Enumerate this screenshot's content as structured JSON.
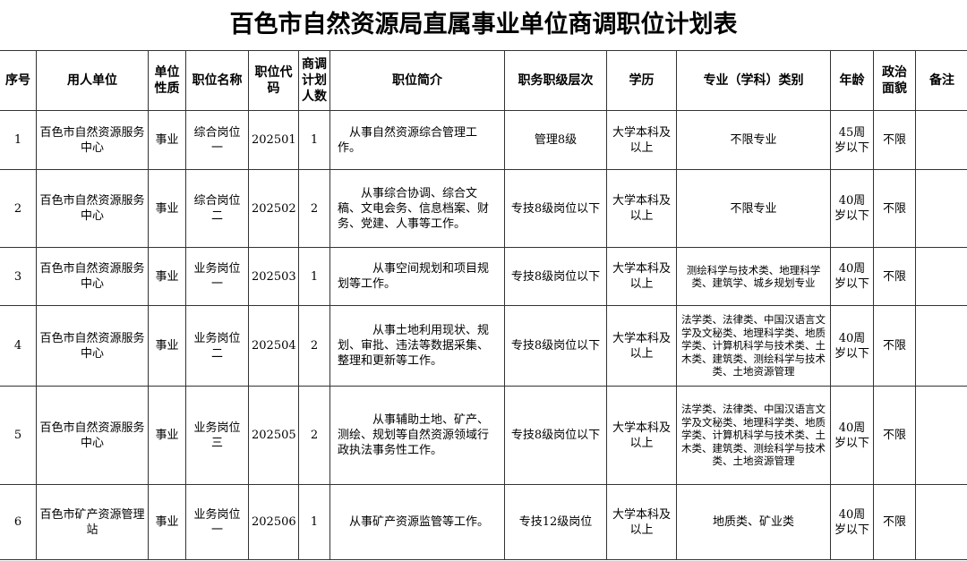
{
  "title": "百色市自然资源局直属事业单位商调职位计划表",
  "headers": [
    "序号",
    "用人单位",
    "单位性质",
    "职位名称",
    "职位代码",
    "商调计划人数",
    "职位简介",
    "职务职级层次",
    "学历",
    "专业（学科）类别",
    "年龄",
    "政治面貌",
    "备注"
  ],
  "rows": [
    {
      "no": "1",
      "unit": "百色市自然资源服务中心",
      "nature": "事业",
      "position": "综合岗位一",
      "code": "202501",
      "count": "1",
      "desc": "　从事自然资源综合管理工作。",
      "level": "管理8级",
      "education": "大学本科及以上",
      "major": "不限专业",
      "age": "45周岁以下",
      "political": "不限",
      "note": ""
    },
    {
      "no": "2",
      "unit": "百色市自然资源服务中心",
      "nature": "事业",
      "position": "综合岗位二",
      "code": "202502",
      "count": "2",
      "desc": "　　从事综合协调、综合文稿、文电会务、信息档案、财务、党建、人事等工作。",
      "level": "专技8级岗位以下",
      "education": "大学本科及以上",
      "major": "不限专业",
      "age": "40周岁以下",
      "political": "不限",
      "note": ""
    },
    {
      "no": "3",
      "unit": "百色市自然资源服务中心",
      "nature": "事业",
      "position": "业务岗位一",
      "code": "202503",
      "count": "1",
      "desc": "　　　从事空间规划和项目规划等工作。",
      "level": "专技8级岗位以下",
      "education": "大学本科及以上",
      "major": "测绘科学与技术类、地理科学类、建筑学、城乡规划专业",
      "age": "40周岁以下",
      "political": "不限",
      "note": ""
    },
    {
      "no": "4",
      "unit": "百色市自然资源服务中心",
      "nature": "事业",
      "position": "业务岗位二",
      "code": "202504",
      "count": "2",
      "desc": "　　　从事土地利用现状、规划、审批、违法等数据采集、整理和更新等工作。",
      "level": "专技8级岗位以下",
      "education": "大学本科及以上",
      "major": "法学类、法律类、中国汉语言文学及文秘类、地理科学类、地质学类、计算机科学与技术类、土木类、建筑类、测绘科学与技术类、土地资源管理",
      "age": "40周岁以下",
      "political": "不限",
      "note": ""
    },
    {
      "no": "5",
      "unit": "百色市自然资源服务中心",
      "nature": "事业",
      "position": "业务岗位三",
      "code": "202505",
      "count": "2",
      "desc": "　　　从事辅助土地、矿产、测绘、规划等自然资源领域行政执法事务性工作。",
      "level": "专技8级岗位以下",
      "education": "大学本科及以上",
      "major": "法学类、法律类、中国汉语言文学及文秘类、地理科学类、地质学类、计算机科学与技术类、土木类、建筑类、测绘科学与技术类、土地资源管理",
      "age": "40周岁以下",
      "political": "不限",
      "note": ""
    },
    {
      "no": "6",
      "unit": "百色市矿产资源管理站",
      "nature": "事业",
      "position": "业务岗位一",
      "code": "202506",
      "count": "1",
      "desc": "　从事矿产资源监管等工作。",
      "level": "专技12级岗位",
      "education": "大学本科及以上",
      "major": "地质类、矿业类",
      "age": "40周岁以下",
      "political": "不限",
      "note": ""
    }
  ]
}
